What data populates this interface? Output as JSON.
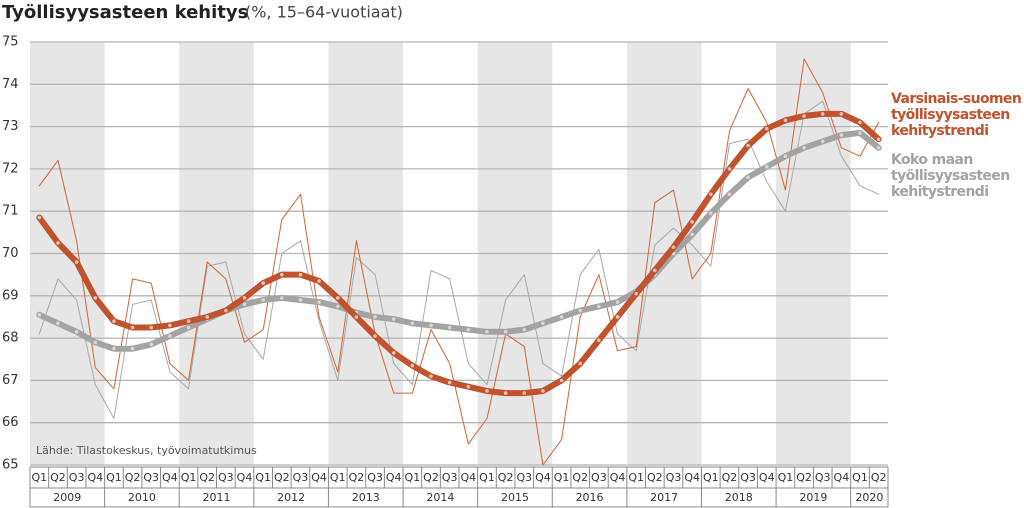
{
  "chart_data": {
    "type": "line",
    "title": "Työllisyysasteen kehitys",
    "subtitle": "(%, 15–64-vuotiaat)",
    "source": "Lähde: Tilastokeskus, työvoimatutkimus",
    "categories": [
      "Q1",
      "Q2",
      "Q3",
      "Q4",
      "Q1",
      "Q2",
      "Q3",
      "Q4",
      "Q1",
      "Q2",
      "Q3",
      "Q4",
      "Q1",
      "Q2",
      "Q3",
      "Q4",
      "Q1",
      "Q2",
      "Q3",
      "Q4",
      "Q1",
      "Q2",
      "Q3",
      "Q4",
      "Q1",
      "Q2",
      "Q3",
      "Q4",
      "Q1",
      "Q2",
      "Q3",
      "Q4",
      "Q1",
      "Q2",
      "Q3",
      "Q4",
      "Q1",
      "Q2",
      "Q3",
      "Q4",
      "Q1",
      "Q2",
      "Q3",
      "Q4",
      "Q1",
      "Q2"
    ],
    "years": [
      "2009",
      "2010",
      "2011",
      "2012",
      "2013",
      "2014",
      "2015",
      "2016",
      "2017",
      "2018",
      "2019",
      "2020"
    ],
    "ylim": [
      65,
      75
    ],
    "yticks": [
      65,
      66,
      67,
      68,
      69,
      70,
      71,
      72,
      73,
      74,
      75
    ],
    "grid": true,
    "series": [
      {
        "color": "#a8a8a8",
        "width": 1,
        "values": [
          68.1,
          69.4,
          68.9,
          66.9,
          66.1,
          68.8,
          68.9,
          67.2,
          66.8,
          69.7,
          69.8,
          68.1,
          67.5,
          70.0,
          70.3,
          68.4,
          67.0,
          69.9,
          69.5,
          67.4,
          66.9,
          69.6,
          69.4,
          67.4,
          66.9,
          68.9,
          69.5,
          67.4,
          67.1,
          69.5,
          70.1,
          68.1,
          67.7,
          70.2,
          70.6,
          70.2,
          69.7,
          72.6,
          72.7,
          71.7,
          71.0,
          73.3,
          73.6,
          72.3,
          71.6,
          71.4
        ]
      },
      {
        "color": "#d0643a",
        "width": 1,
        "values": [
          71.6,
          72.2,
          70.3,
          67.3,
          66.8,
          69.4,
          69.3,
          67.4,
          67.0,
          69.8,
          69.4,
          67.9,
          68.2,
          70.8,
          71.4,
          68.5,
          67.2,
          70.3,
          68.1,
          66.7,
          66.7,
          68.2,
          67.4,
          65.5,
          66.1,
          68.1,
          67.8,
          65.0,
          65.6,
          68.5,
          69.5,
          67.7,
          67.8,
          71.2,
          71.5,
          69.4,
          70.0,
          72.9,
          73.9,
          73.1,
          71.5,
          74.6,
          73.8,
          72.5,
          72.3,
          73.1
        ]
      },
      {
        "name": "Koko maan työllisyysasteen kehitystrendi",
        "color": "#a3a3a3",
        "width": 6,
        "values": [
          68.55,
          68.35,
          68.15,
          67.9,
          67.75,
          67.75,
          67.85,
          68.05,
          68.25,
          68.45,
          68.65,
          68.8,
          68.9,
          68.95,
          68.9,
          68.85,
          68.75,
          68.6,
          68.5,
          68.45,
          68.35,
          68.3,
          68.25,
          68.2,
          68.15,
          68.15,
          68.2,
          68.35,
          68.5,
          68.65,
          68.75,
          68.85,
          69.1,
          69.5,
          70.0,
          70.45,
          70.95,
          71.4,
          71.8,
          72.05,
          72.3,
          72.5,
          72.65,
          72.8,
          72.85,
          72.5
        ]
      },
      {
        "name": "Varsinais-suomen työllisyysasteen kehitystrendi",
        "color": "#c0522d",
        "width": 6,
        "values": [
          70.85,
          70.25,
          69.8,
          68.95,
          68.4,
          68.25,
          68.25,
          68.3,
          68.4,
          68.5,
          68.65,
          68.95,
          69.3,
          69.5,
          69.5,
          69.35,
          68.95,
          68.5,
          68.05,
          67.65,
          67.35,
          67.1,
          66.95,
          66.85,
          66.75,
          66.7,
          66.7,
          66.75,
          67.0,
          67.4,
          67.95,
          68.5,
          69.05,
          69.6,
          70.15,
          70.75,
          71.4,
          72.0,
          72.55,
          72.95,
          73.15,
          73.25,
          73.3,
          73.3,
          73.1,
          72.7
        ]
      }
    ]
  }
}
